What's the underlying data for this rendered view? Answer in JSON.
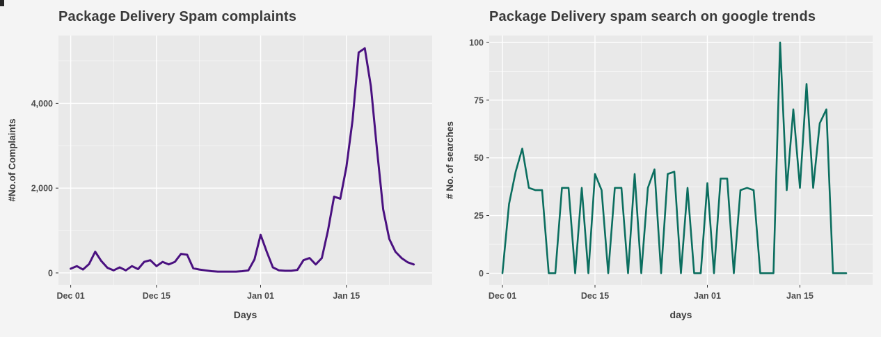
{
  "figure": {
    "background": "#f4f4f4"
  },
  "chart_data": [
    {
      "type": "line",
      "title": "Package Delivery Spam complaints",
      "xlabel": "Days",
      "ylabel": "#No.of Complaints",
      "line_color": "#4a1180",
      "panel_bg": "#e9e9e9",
      "grid_major_color": "#ffffff",
      "axis_text_color": "#4d4d4d",
      "axis_title_color": "#3d3d3d",
      "title_color": "#3a3a3a",
      "legend": "none",
      "grid": true,
      "x_unit": "days since Dec 01",
      "x_range": [
        -2,
        59
      ],
      "ylim": [
        -280,
        5600
      ],
      "yticks": [
        {
          "value": 0,
          "label": "0"
        },
        {
          "value": 2000,
          "label": "2,000"
        },
        {
          "value": 4000,
          "label": "4,000"
        }
      ],
      "yticks_minor": [
        1000,
        3000,
        5000
      ],
      "xticks": [
        {
          "value": 0,
          "label": "Dec 01"
        },
        {
          "value": 14,
          "label": "Dec 15"
        },
        {
          "value": 31,
          "label": "Jan 01"
        },
        {
          "value": 45,
          "label": "Jan 15"
        }
      ],
      "xticks_minor": [
        7,
        21,
        38,
        52
      ],
      "x": [
        0,
        1,
        2,
        3,
        4,
        5,
        6,
        7,
        8,
        9,
        10,
        11,
        12,
        13,
        14,
        15,
        16,
        17,
        18,
        19,
        20,
        21,
        22,
        23,
        24,
        25,
        26,
        27,
        28,
        29,
        30,
        31,
        32,
        33,
        34,
        35,
        36,
        37,
        38,
        39,
        40,
        41,
        42,
        43,
        44,
        45,
        46,
        47,
        48,
        49,
        50,
        51,
        52,
        53,
        54,
        55,
        56
      ],
      "values": [
        100,
        160,
        80,
        210,
        500,
        280,
        120,
        60,
        130,
        60,
        160,
        90,
        260,
        300,
        160,
        260,
        200,
        260,
        450,
        430,
        110,
        80,
        60,
        40,
        30,
        30,
        30,
        30,
        40,
        60,
        320,
        900,
        500,
        130,
        60,
        50,
        50,
        70,
        300,
        350,
        200,
        350,
        1000,
        1800,
        1750,
        2500,
        3600,
        5200,
        5300,
        4400,
        2900,
        1500,
        800,
        500,
        350,
        250,
        200
      ]
    },
    {
      "type": "line",
      "title": "Package Delivery spam search on google trends",
      "xlabel": "days",
      "ylabel": "# No. of searches",
      "line_color": "#0b6e5f",
      "panel_bg": "#e9e9e9",
      "grid_major_color": "#ffffff",
      "axis_text_color": "#4d4d4d",
      "axis_title_color": "#3d3d3d",
      "title_color": "#3a3a3a",
      "legend": "none",
      "grid": true,
      "x_unit": "days since Dec 01",
      "x_range": [
        -2,
        56
      ],
      "ylim": [
        -5,
        103
      ],
      "yticks": [
        {
          "value": 0,
          "label": "0"
        },
        {
          "value": 25,
          "label": "25"
        },
        {
          "value": 50,
          "label": "50"
        },
        {
          "value": 75,
          "label": "75"
        },
        {
          "value": 100,
          "label": "100"
        }
      ],
      "yticks_minor": [
        12.5,
        37.5,
        62.5,
        87.5
      ],
      "xticks": [
        {
          "value": 0,
          "label": "Dec 01"
        },
        {
          "value": 14,
          "label": "Dec 15"
        },
        {
          "value": 31,
          "label": "Jan 01"
        },
        {
          "value": 45,
          "label": "Jan 15"
        }
      ],
      "xticks_minor": [
        7,
        21,
        38,
        52
      ],
      "x": [
        0,
        1,
        2,
        3,
        4,
        5,
        6,
        7,
        8,
        9,
        10,
        11,
        12,
        13,
        14,
        15,
        16,
        17,
        18,
        19,
        20,
        21,
        22,
        23,
        24,
        25,
        26,
        27,
        28,
        29,
        30,
        31,
        32,
        33,
        34,
        35,
        36,
        37,
        38,
        39,
        40,
        41,
        42,
        43,
        44,
        45,
        46,
        47,
        48,
        49,
        50,
        51,
        52
      ],
      "values": [
        0,
        30,
        44,
        54,
        37,
        36,
        36,
        0,
        0,
        37,
        37,
        0,
        37,
        0,
        43,
        36,
        0,
        37,
        37,
        0,
        43,
        0,
        37,
        45,
        0,
        43,
        44,
        0,
        37,
        0,
        0,
        39,
        0,
        41,
        41,
        0,
        36,
        37,
        36,
        0,
        0,
        0,
        100,
        36,
        71,
        37,
        82,
        37,
        65,
        71,
        0,
        0,
        0
      ]
    }
  ]
}
